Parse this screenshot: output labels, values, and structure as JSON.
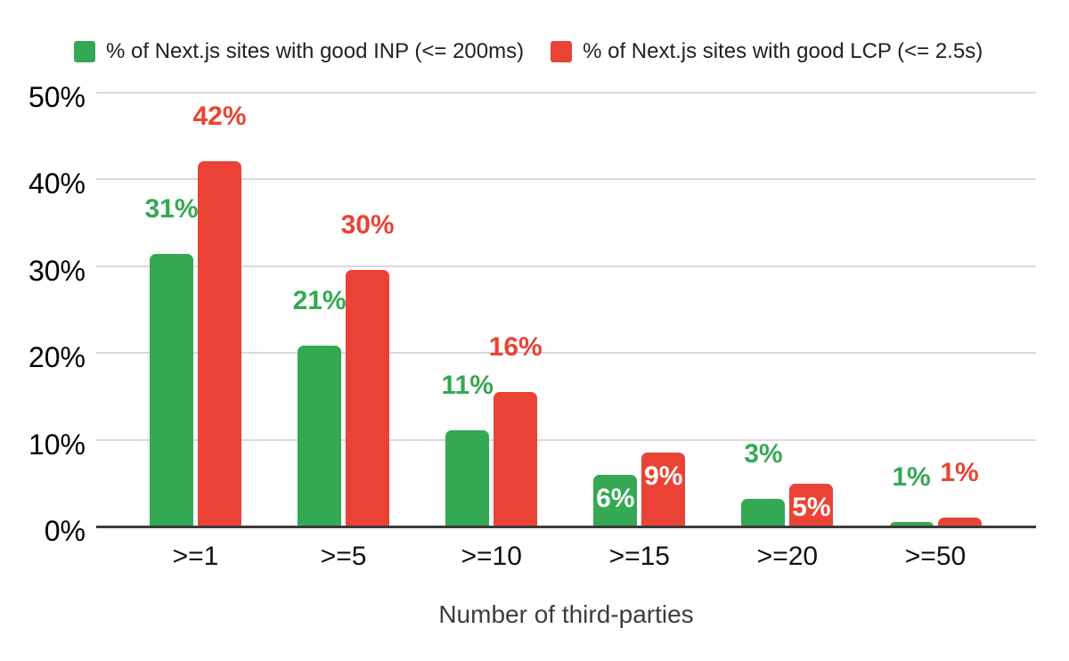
{
  "colors": {
    "inp_green": "#34a853",
    "lcp_red": "#ea4335",
    "gridline": "#d9d9d9",
    "axis_line": "#3b3b3b",
    "inside_label": "#ffffff",
    "tick_text": "#000000",
    "axis_title_text": "#3c3c3c",
    "legend_text": "#212121",
    "background": "#ffffff"
  },
  "legend": {
    "items": [
      {
        "id": "inp",
        "label": "% of Next.js sites with good INP (<= 200ms)",
        "color": "#34a853"
      },
      {
        "id": "lcp",
        "label": "% of Next.js sites with good LCP (<= 2.5s)",
        "color": "#ea4335"
      }
    ]
  },
  "chart_data": {
    "type": "bar",
    "title": "",
    "xlabel": "Number of third-parties",
    "ylabel": "",
    "categories": [
      ">=1",
      ">=5",
      ">=10",
      ">=15",
      ">=20",
      ">=50"
    ],
    "y_ticks": [
      "0%",
      "10%",
      "20%",
      "30%",
      "40%",
      "50%"
    ],
    "ylim": [
      0,
      50
    ],
    "grid": true,
    "legend_position": "top",
    "series": [
      {
        "name": "% of Next.js sites with good INP (<= 200ms)",
        "color": "#34a853",
        "values": [
          31.4,
          20.8,
          11.1,
          6.0,
          3.2,
          0.5
        ],
        "labels": [
          "31%",
          "21%",
          "11%",
          "6%",
          "3%",
          "1%"
        ],
        "label_placement": [
          "outside",
          "outside",
          "outside",
          "inside",
          "outside",
          "outside"
        ]
      },
      {
        "name": "% of Next.js sites with good LCP (<= 2.5s)",
        "color": "#ea4335",
        "values": [
          42.1,
          29.6,
          15.5,
          8.5,
          4.9,
          1.0
        ],
        "labels": [
          "42%",
          "30%",
          "16%",
          "9%",
          "5%",
          "1%"
        ],
        "label_placement": [
          "outside",
          "outside",
          "outside",
          "inside",
          "inside",
          "outside"
        ]
      }
    ]
  }
}
